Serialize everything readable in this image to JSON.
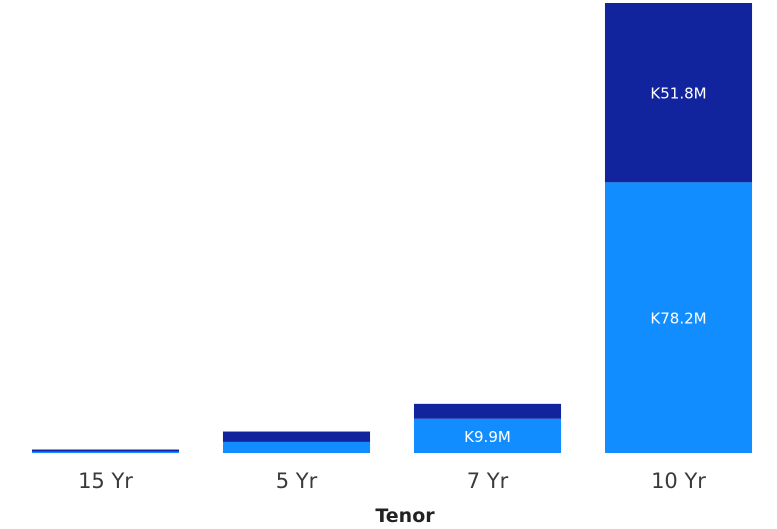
{
  "chart_data": {
    "type": "bar",
    "stacked": true,
    "title": "",
    "xlabel": "Tenor",
    "ylabel": "",
    "categories": [
      "15 Yr",
      "5 Yr",
      "7 Yr",
      "10 Yr"
    ],
    "ylim": [
      0,
      130
    ],
    "grid": false,
    "series": [
      {
        "color": "#118dff",
        "values": [
          0.4,
          3.2,
          9.9,
          78.2
        ],
        "labels": [
          "",
          "",
          "K9.9M",
          "K78.2M"
        ]
      },
      {
        "color": "#12239e",
        "values": [
          0.6,
          3.0,
          4.3,
          51.8
        ],
        "labels": [
          "",
          "",
          "",
          "K51.8M"
        ]
      }
    ]
  }
}
